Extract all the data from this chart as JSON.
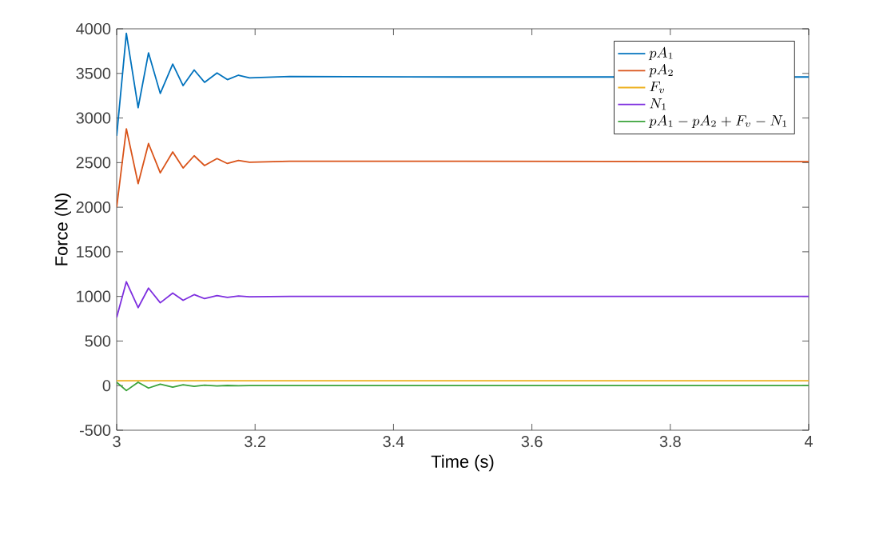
{
  "chart_data": {
    "type": "line",
    "xlabel": "Time (s)",
    "ylabel": "Force (N)",
    "xlim": [
      3,
      4
    ],
    "xticks": [
      3,
      3.2,
      3.4,
      3.6,
      3.8,
      4
    ],
    "ylim": [
      -500,
      4000
    ],
    "yticks": [
      -500,
      0,
      500,
      1000,
      1500,
      2000,
      2500,
      3000,
      3500,
      4000
    ],
    "grid": false,
    "legend": "top right",
    "marker": "none",
    "line_style": "solid",
    "series": [
      {
        "name": "pA_1",
        "color": "#0072bd",
        "x": [
          3.0,
          3.014,
          3.031,
          3.046,
          3.063,
          3.081,
          3.096,
          3.112,
          3.127,
          3.145,
          3.16,
          3.176,
          3.192,
          3.25,
          3.5,
          4
        ],
        "values": [
          2800,
          3950,
          3115,
          3730,
          3275,
          3604,
          3363,
          3538,
          3400,
          3505,
          3430,
          3480,
          3450,
          3465,
          3460,
          3460
        ]
      },
      {
        "name": "pA_2",
        "color": "#d95319",
        "x": [
          3.0,
          3.014,
          3.031,
          3.046,
          3.063,
          3.081,
          3.096,
          3.112,
          3.127,
          3.145,
          3.16,
          3.176,
          3.192,
          3.25,
          3.5,
          4
        ],
        "values": [
          2000,
          2879,
          2264,
          2714,
          2385,
          2620,
          2440,
          2577,
          2467,
          2545,
          2490,
          2525,
          2505,
          2515,
          2515,
          2510
        ]
      },
      {
        "name": "F_v",
        "color": "#edb120",
        "x": [
          3.0,
          4
        ],
        "values": [
          55,
          55
        ]
      },
      {
        "name": "N_1",
        "color": "#7e2fdf",
        "x": [
          3.0,
          3.014,
          3.031,
          3.046,
          3.063,
          3.081,
          3.096,
          3.112,
          3.127,
          3.145,
          3.16,
          3.176,
          3.192,
          3.25,
          3.5,
          4
        ],
        "values": [
          764,
          1165,
          874,
          1093,
          929,
          1038,
          956,
          1020,
          975,
          1010,
          990,
          1005,
          995,
          1000,
          1000,
          1000
        ]
      },
      {
        "name": "pA_1-pA_2+F_v-N_1",
        "color": "#3aa33a",
        "x": [
          3.0,
          3.014,
          3.031,
          3.046,
          3.063,
          3.081,
          3.096,
          3.112,
          3.127,
          3.145,
          3.16,
          3.176,
          3.192,
          3.25,
          3.5,
          4
        ],
        "values": [
          38,
          -55,
          38,
          -27,
          16,
          -16,
          10,
          -8,
          5,
          -3,
          2,
          -1,
          0,
          0,
          0,
          0
        ]
      }
    ]
  }
}
